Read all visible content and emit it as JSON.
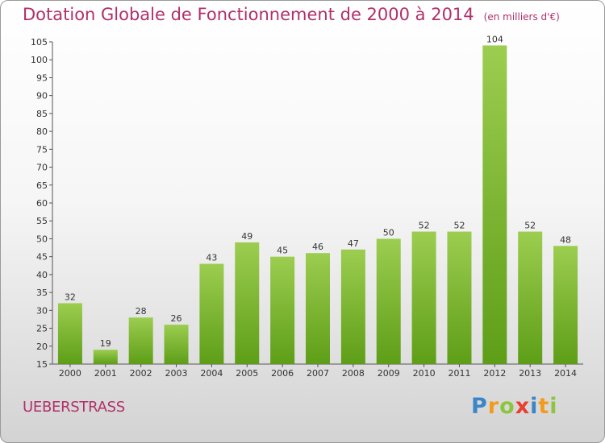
{
  "header": {
    "title": "Dotation Globale de Fonctionnement de 2000 à 2014",
    "unit": "(en milliers d'€)"
  },
  "commune": "UEBERSTRASS",
  "logo": {
    "letters": [
      "P",
      "r",
      "o",
      "x",
      "i",
      "t",
      "i"
    ],
    "colors": [
      "#3b86c6",
      "#f29b1d",
      "#8cc63f",
      "#e8402e",
      "#3b86c6",
      "#f29b1d",
      "#8cc63f"
    ]
  },
  "chart_data": {
    "type": "bar",
    "title": "Dotation Globale de Fonctionnement de 2000 à 2014",
    "subtitle": "(en milliers d'€)",
    "categories": [
      "2000",
      "2001",
      "2002",
      "2003",
      "2004",
      "2005",
      "2006",
      "2007",
      "2008",
      "2009",
      "2010",
      "2011",
      "2012",
      "2013",
      "2014"
    ],
    "values": [
      32,
      19,
      28,
      26,
      43,
      49,
      45,
      46,
      47,
      50,
      52,
      52,
      104,
      52,
      48
    ],
    "ylim": [
      15,
      105
    ],
    "yticks": [
      15,
      20,
      25,
      30,
      35,
      40,
      45,
      50,
      55,
      60,
      65,
      70,
      75,
      80,
      85,
      90,
      95,
      100,
      105
    ],
    "grid": false,
    "bar_color": "#7fba3a"
  }
}
